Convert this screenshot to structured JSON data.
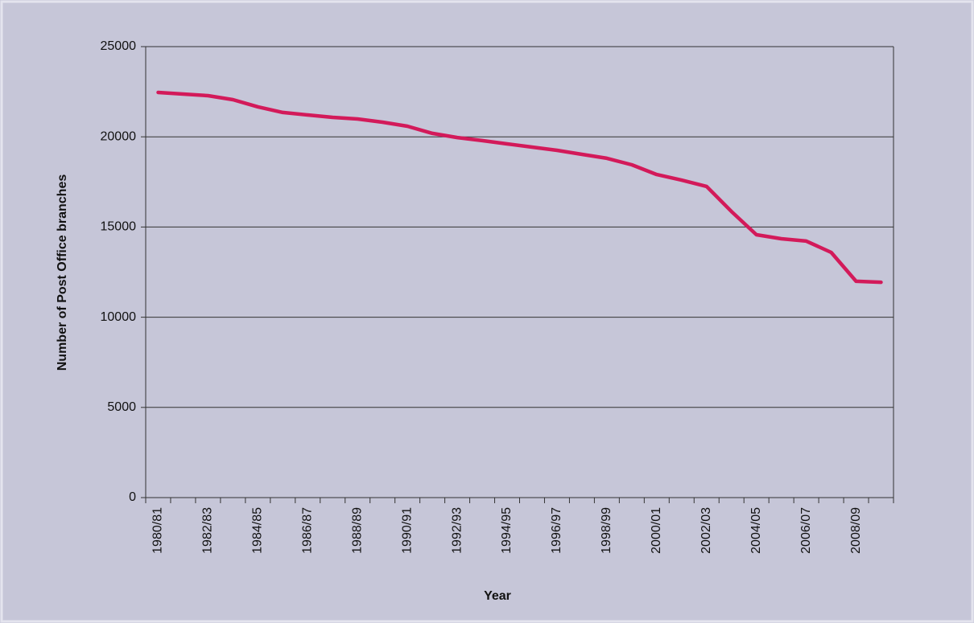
{
  "chart_data": {
    "type": "line",
    "xlabel": "Year",
    "ylabel": "Number of Post Office branches",
    "categories": [
      "1980/81",
      null,
      "1982/83",
      null,
      "1984/85",
      null,
      "1986/87",
      null,
      "1988/89",
      null,
      "1990/91",
      null,
      "1992/93",
      null,
      "1994/95",
      null,
      "1996/97",
      null,
      "1998/99",
      null,
      "2000/01",
      null,
      "2002/03",
      null,
      "2004/05",
      null,
      "2006/07",
      null,
      "2008/09",
      null
    ],
    "values": [
      22460,
      22370,
      22280,
      22060,
      21660,
      21350,
      21210,
      21080,
      20990,
      20810,
      20590,
      20190,
      19960,
      19790,
      19610,
      19430,
      19250,
      19030,
      18810,
      18450,
      17910,
      17600,
      17250,
      15860,
      14570,
      14350,
      14220,
      13590,
      11990,
      11940
    ],
    "color": "#d31a5a",
    "ylim": [
      0,
      25000
    ],
    "yticks": [
      0,
      5000,
      10000,
      15000,
      20000,
      25000
    ],
    "grid": true
  }
}
